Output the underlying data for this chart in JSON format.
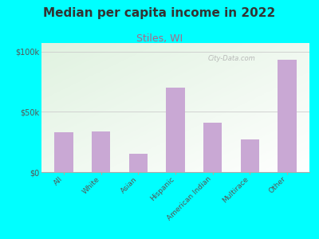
{
  "title": "Median per capita income in 2022",
  "subtitle": "Stiles, WI",
  "categories": [
    "All",
    "White",
    "Asian",
    "Hispanic",
    "American Indian",
    "Multirace",
    "Other"
  ],
  "values": [
    33000,
    34000,
    15000,
    70000,
    41000,
    27000,
    93000
  ],
  "bar_color": "#c9a8d4",
  "ylim": [
    0,
    107000
  ],
  "yticks": [
    0,
    50000,
    100000
  ],
  "ytick_labels": [
    "$0",
    "$50k",
    "$100k"
  ],
  "background_color": "#00ffff",
  "title_fontsize": 11,
  "title_color": "#333333",
  "subtitle_fontsize": 9,
  "subtitle_color": "#aa6688",
  "tick_label_color": "#555555",
  "watermark": "City-Data.com"
}
